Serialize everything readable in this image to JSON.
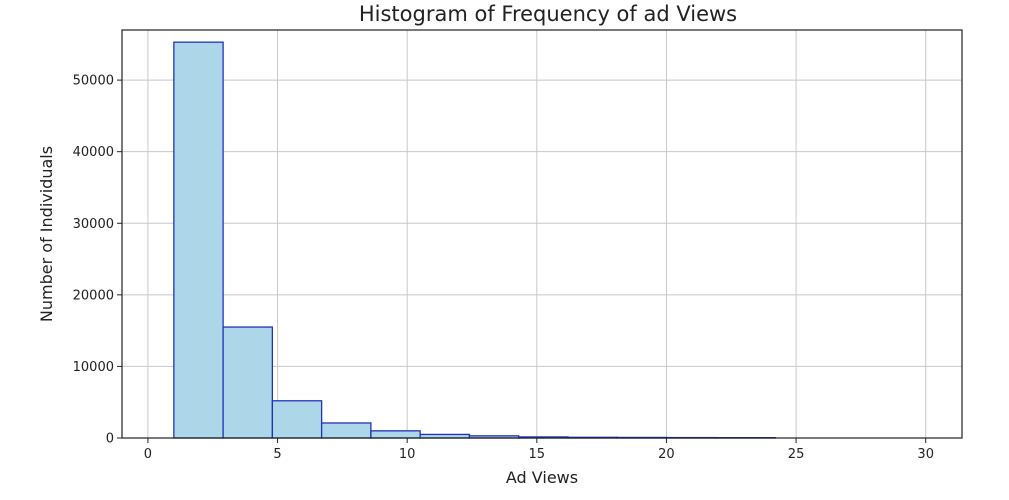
{
  "chart_data": {
    "type": "bar",
    "title": "Histogram of Frequency of ad Views",
    "xlabel": "Ad Views",
    "ylabel": "Number of Individuals",
    "xlim": [
      -1,
      31.4
    ],
    "ylim": [
      0,
      57000
    ],
    "xticks": [
      0,
      5,
      10,
      15,
      20,
      25,
      30
    ],
    "yticks": [
      0,
      10000,
      20000,
      30000,
      40000,
      50000
    ],
    "grid": true,
    "colors": {
      "fill": "#add6e8",
      "edge": "#2233bb"
    },
    "bins": [
      {
        "x0": 1.0,
        "x1": 2.9,
        "value": 55300
      },
      {
        "x0": 2.9,
        "x1": 4.8,
        "value": 15500
      },
      {
        "x0": 4.8,
        "x1": 6.7,
        "value": 5200
      },
      {
        "x0": 6.7,
        "x1": 8.6,
        "value": 2100
      },
      {
        "x0": 8.6,
        "x1": 10.5,
        "value": 1000
      },
      {
        "x0": 10.5,
        "x1": 12.4,
        "value": 500
      },
      {
        "x0": 12.4,
        "x1": 14.3,
        "value": 300
      },
      {
        "x0": 14.3,
        "x1": 16.2,
        "value": 150
      },
      {
        "x0": 16.2,
        "x1": 18.1,
        "value": 100
      },
      {
        "x0": 18.1,
        "x1": 20.0,
        "value": 80
      },
      {
        "x0": 20.0,
        "x1": 21.9,
        "value": 60
      },
      {
        "x0": 21.9,
        "x1": 24.2,
        "value": 50
      }
    ]
  }
}
